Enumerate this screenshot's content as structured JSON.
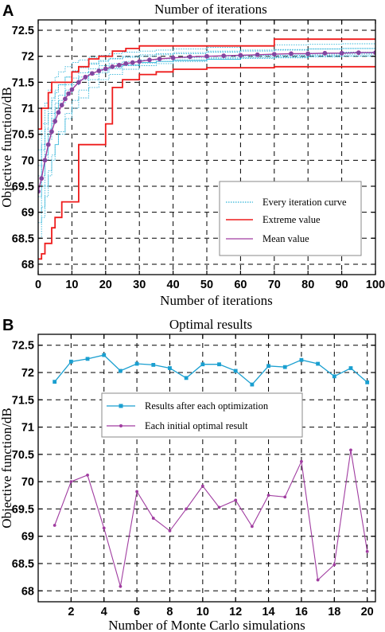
{
  "chart_data": [
    {
      "panel": "A",
      "type": "line",
      "title": "Number of iterations",
      "xlabel": "Number of iterations",
      "ylabel": "Objective function/dB",
      "xlim": [
        0,
        100
      ],
      "ylim": [
        67.8,
        72.7
      ],
      "xticks": [
        "0",
        "10",
        "20",
        "30",
        "40",
        "50",
        "60",
        "70",
        "80",
        "90",
        "100"
      ],
      "yticks": [
        "68",
        "68.5",
        "69",
        "69.5",
        "70",
        "70.5",
        "71",
        "71.5",
        "72",
        "72.5"
      ],
      "grid": true,
      "legend_position": "lower-right",
      "colors": {
        "every": "#2fb3d8",
        "extreme": "#ee1c1c",
        "mean": "#a03ca0",
        "mean_marker": "#7b4aa0"
      },
      "series": [
        {
          "name": "Every iteration curve",
          "style": "dotted",
          "curves": [
            {
              "x": [
                0,
                1,
                2,
                3,
                4,
                5,
                6,
                8,
                10,
                12,
                15,
                18,
                21,
                25,
                30,
                35,
                40,
                50,
                60,
                70,
                80,
                90,
                100
              ],
              "y": [
                69.0,
                69.5,
                70.0,
                70.4,
                70.7,
                70.9,
                71.1,
                71.3,
                71.45,
                71.55,
                71.65,
                71.72,
                71.78,
                71.83,
                71.88,
                71.9,
                71.93,
                71.97,
                72.0,
                72.02,
                72.04,
                72.06,
                72.07
              ]
            },
            {
              "x": [
                0,
                1,
                2,
                3,
                4,
                5,
                6,
                8,
                10,
                12,
                15,
                18,
                21,
                25,
                30,
                35,
                40,
                50,
                60,
                70,
                80,
                90,
                100
              ],
              "y": [
                69.7,
                70.2,
                70.7,
                71.0,
                71.2,
                71.35,
                71.45,
                71.6,
                71.7,
                71.78,
                71.85,
                71.9,
                71.95,
                71.98,
                72.0,
                72.03,
                72.05,
                72.08,
                72.1,
                72.12,
                72.14,
                72.15,
                72.17
              ]
            },
            {
              "x": [
                0,
                1,
                2,
                3,
                4,
                5,
                6,
                8,
                10,
                12,
                15,
                18,
                21,
                25,
                30,
                35,
                40,
                50,
                60,
                70,
                80,
                90,
                100
              ],
              "y": [
                68.8,
                69.1,
                69.5,
                69.8,
                70.1,
                70.3,
                70.5,
                70.8,
                71.0,
                71.2,
                71.4,
                71.55,
                71.65,
                71.75,
                71.82,
                71.86,
                71.9,
                71.94,
                71.97,
                72.0,
                72.02,
                72.04,
                72.05
              ]
            },
            {
              "x": [
                0,
                1,
                2,
                3,
                4,
                5,
                6,
                8,
                10,
                12,
                15,
                18,
                21,
                25,
                30,
                35,
                40,
                50,
                60,
                70,
                80,
                90,
                100
              ],
              "y": [
                70.2,
                70.7,
                71.1,
                71.35,
                71.5,
                71.6,
                71.7,
                71.8,
                71.88,
                71.93,
                71.98,
                72.02,
                72.05,
                72.08,
                72.1,
                72.12,
                72.14,
                72.17,
                72.2,
                72.22,
                72.23,
                72.24,
                72.25
              ]
            },
            {
              "x": [
                0,
                1,
                2,
                3,
                4,
                5,
                6,
                8,
                10,
                12,
                15,
                18,
                21,
                25,
                30,
                35,
                40,
                50,
                60,
                70,
                80,
                90,
                100
              ],
              "y": [
                69.3,
                69.7,
                70.1,
                70.5,
                70.8,
                71.0,
                71.15,
                71.35,
                71.5,
                71.6,
                71.7,
                71.76,
                71.8,
                71.84,
                71.88,
                71.9,
                71.92,
                71.95,
                71.97,
                71.98,
                72.0,
                72.01,
                72.02
              ]
            },
            {
              "x": [
                0,
                1,
                2,
                3,
                4,
                5,
                6,
                8,
                10,
                12,
                15,
                18,
                21,
                25,
                30,
                35,
                40,
                50,
                60,
                70,
                80,
                90,
                100
              ],
              "y": [
                68.5,
                68.9,
                69.3,
                69.7,
                70.0,
                70.3,
                70.55,
                70.9,
                71.15,
                71.35,
                71.55,
                71.68,
                71.76,
                71.82,
                71.87,
                71.9,
                71.92,
                71.94,
                71.96,
                71.97,
                71.99,
                72.0,
                72.01
              ]
            },
            {
              "x": [
                0,
                1,
                2,
                3,
                4,
                5,
                6,
                8,
                10,
                12,
                15,
                18,
                21,
                25,
                30,
                35,
                40,
                50,
                60,
                70,
                80,
                90,
                100
              ],
              "y": [
                69.9,
                70.3,
                70.6,
                70.9,
                71.15,
                71.3,
                71.45,
                71.6,
                71.72,
                71.8,
                71.87,
                71.92,
                71.96,
                72.0,
                72.03,
                72.05,
                72.07,
                72.1,
                72.12,
                72.13,
                72.14,
                72.15,
                72.15
              ]
            },
            {
              "x": [
                0,
                1,
                2,
                3,
                4,
                5,
                6,
                8,
                10,
                12,
                15,
                18,
                21,
                25,
                30,
                35,
                40,
                50,
                60,
                70,
                80,
                90,
                100
              ],
              "y": [
                69.5,
                69.9,
                70.3,
                70.6,
                70.9,
                71.1,
                71.25,
                71.45,
                71.58,
                71.68,
                71.76,
                71.82,
                71.86,
                71.9,
                71.93,
                71.95,
                71.97,
                72.0,
                72.02,
                72.04,
                72.06,
                72.08,
                72.09
              ]
            }
          ]
        },
        {
          "name": "Extreme value",
          "style": "step",
          "curves": [
            {
              "x": [
                0,
                1,
                2,
                3,
                4,
                5,
                7,
                10,
                12,
                15,
                18,
                22,
                26,
                30,
                40,
                50,
                60,
                68,
                70,
                80,
                90,
                100
              ],
              "y": [
                70.6,
                71.0,
                71.0,
                71.3,
                71.5,
                71.5,
                71.5,
                71.7,
                71.8,
                71.95,
                72.0,
                72.1,
                72.15,
                72.2,
                72.2,
                72.2,
                72.2,
                72.2,
                72.33,
                72.33,
                72.33,
                72.33
              ]
            },
            {
              "x": [
                0,
                1,
                2,
                4,
                5,
                7,
                10,
                12,
                14,
                18,
                20,
                22,
                25,
                30,
                35,
                40,
                50,
                70,
                100
              ],
              "y": [
                68.1,
                68.2,
                68.4,
                68.7,
                68.9,
                69.2,
                69.2,
                70.3,
                70.3,
                70.3,
                70.7,
                71.4,
                71.55,
                71.65,
                71.7,
                71.75,
                71.78,
                71.8,
                71.8
              ]
            }
          ]
        },
        {
          "name": "Mean value",
          "style": "line-markers",
          "x": [
            0,
            1,
            2,
            3,
            4,
            5,
            6,
            7,
            8,
            9,
            10,
            12,
            14,
            16,
            18,
            20,
            22,
            24,
            26,
            28,
            30,
            33,
            36,
            40,
            45,
            50,
            55,
            60,
            65,
            70,
            75,
            80,
            85,
            90,
            95,
            100
          ],
          "y": [
            69.4,
            69.65,
            70.0,
            70.3,
            70.55,
            70.75,
            70.92,
            71.06,
            71.18,
            71.28,
            71.36,
            71.5,
            71.6,
            71.67,
            71.72,
            71.76,
            71.8,
            71.83,
            71.86,
            71.88,
            71.9,
            71.93,
            71.95,
            71.97,
            71.99,
            72.0,
            72.01,
            72.02,
            72.03,
            72.04,
            72.05,
            72.05,
            72.06,
            72.06,
            72.07,
            72.07
          ]
        }
      ],
      "legend": [
        {
          "name": "Every iteration curve",
          "key": "every"
        },
        {
          "name": "Extreme value",
          "key": "extreme"
        },
        {
          "name": "Mean value",
          "key": "mean"
        }
      ]
    },
    {
      "panel": "B",
      "type": "line",
      "title": "Optimal results",
      "xlabel": "Number of Monte Carlo simulations",
      "ylabel": "Objective function/dB",
      "xlim": [
        0,
        20.5
      ],
      "ylim": [
        67.8,
        72.7
      ],
      "xticks": [
        "2",
        "4",
        "6",
        "8",
        "10",
        "12",
        "14",
        "16",
        "18",
        "20"
      ],
      "yticks": [
        "68",
        "68.5",
        "69",
        "69.5",
        "70",
        "70.5",
        "71",
        "71.5",
        "72",
        "72.5"
      ],
      "grid": true,
      "legend_position": "upper-center",
      "colors": {
        "results": "#1a9fd0",
        "initial": "#a03ca0"
      },
      "series": [
        {
          "name": "Results after each optimization",
          "x": [
            1,
            2,
            3,
            4,
            5,
            6,
            7,
            8,
            9,
            10,
            11,
            12,
            13,
            14,
            15,
            16,
            17,
            18,
            19,
            20
          ],
          "values": [
            71.83,
            72.2,
            72.25,
            72.32,
            72.03,
            72.16,
            72.14,
            72.08,
            71.9,
            72.15,
            72.15,
            72.03,
            71.78,
            72.12,
            72.1,
            72.23,
            72.16,
            71.93,
            72.08,
            71.82
          ]
        },
        {
          "name": "Each initial optimal result",
          "x": [
            1,
            2,
            3,
            4,
            5,
            6,
            7,
            8,
            9,
            10,
            11,
            12,
            13,
            14,
            15,
            16,
            17,
            18,
            19,
            20
          ],
          "values": [
            69.2,
            70.0,
            70.12,
            69.15,
            68.08,
            69.82,
            69.33,
            69.1,
            69.5,
            69.92,
            69.53,
            69.66,
            69.18,
            69.75,
            69.72,
            70.37,
            68.2,
            68.48,
            70.58,
            68.72
          ]
        }
      ],
      "legend": [
        {
          "name": "Results after each optimization",
          "key": "results"
        },
        {
          "name": "Each initial optimal result",
          "key": "initial"
        }
      ]
    }
  ]
}
